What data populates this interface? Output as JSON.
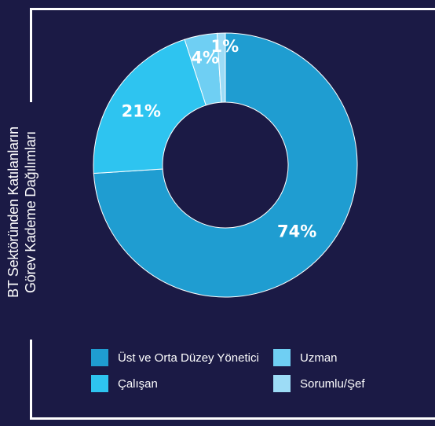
{
  "chart_data": {
    "type": "pie",
    "donut": true,
    "title": "BT Sektöründen Katılanların Görev Kademe Dağılımları",
    "title_lines": [
      "BT Sektöründen Katılanların",
      "Görev Kademe Dağılımları"
    ],
    "categories": [
      "Üst ve Orta Düzey Yönetici",
      "Çalışan",
      "Uzman",
      "Sorumlu/Şef"
    ],
    "values": [
      74,
      21,
      4,
      1
    ],
    "data_labels": [
      "74%",
      "21%",
      "4%",
      "1%"
    ],
    "colors": [
      "#1f9dd1",
      "#2ec4f0",
      "#6fcff3",
      "#9ddcf6"
    ],
    "legend": {
      "placement": "bottom",
      "columns": [
        [
          "Üst ve Orta Düzey Yönetici",
          "Çalışan"
        ],
        [
          "Uzman",
          "Sorumlu/Şef"
        ]
      ]
    }
  }
}
